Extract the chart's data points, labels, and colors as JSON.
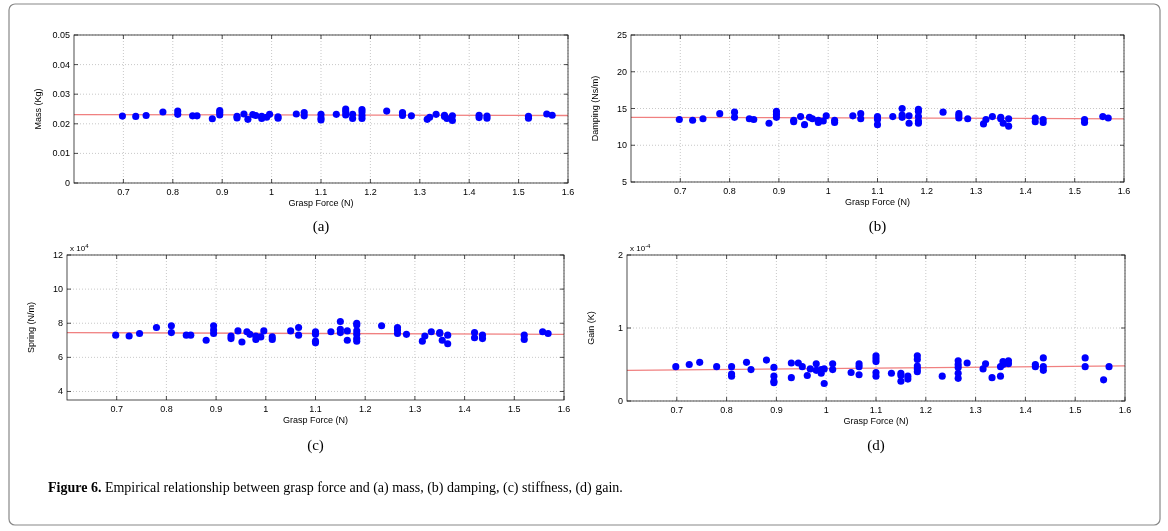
{
  "chart_data": [
    {
      "type": "scatter",
      "title": "(a)",
      "xlabel": "Grasp Force (N)",
      "ylabel": "Mass (Kg)",
      "xlim": [
        0.6,
        1.6
      ],
      "xticks": [
        0.7,
        0.8,
        0.9,
        1,
        1.1,
        1.2,
        1.3,
        1.4,
        1.5,
        1.6
      ],
      "ylim": [
        0,
        0.05
      ],
      "yticks": [
        0,
        0.01,
        0.02,
        0.03,
        0.04,
        0.05
      ],
      "grid": true,
      "series": [
        {
          "type": "scatter",
          "marker": "circle",
          "color": "#0000ff",
          "x": [
            0.698,
            0.725,
            0.746,
            0.78,
            0.81,
            0.81,
            0.84,
            0.849,
            0.88,
            0.895,
            0.895,
            0.895,
            0.93,
            0.93,
            0.944,
            0.952,
            0.962,
            0.968,
            0.98,
            0.98,
            0.99,
            0.996,
            1.013,
            1.013,
            1.05,
            1.066,
            1.066,
            1.1,
            1.1,
            1.1,
            1.131,
            1.15,
            1.15,
            1.15,
            1.164,
            1.164,
            1.183,
            1.183,
            1.183,
            1.183,
            1.233,
            1.265,
            1.265,
            1.265,
            1.283,
            1.315,
            1.32,
            1.333,
            1.35,
            1.35,
            1.355,
            1.366,
            1.366,
            1.42,
            1.42,
            1.436,
            1.436,
            1.52,
            1.52,
            1.557,
            1.568
          ],
          "values": [
            0.0226,
            0.0225,
            0.0228,
            0.024,
            0.0243,
            0.0232,
            0.0227,
            0.0227,
            0.0217,
            0.0245,
            0.0238,
            0.023,
            0.0225,
            0.022,
            0.0233,
            0.0215,
            0.0231,
            0.0228,
            0.0225,
            0.0218,
            0.0222,
            0.0232,
            0.0224,
            0.0219,
            0.0233,
            0.0238,
            0.0227,
            0.0232,
            0.022,
            0.0213,
            0.0232,
            0.025,
            0.0241,
            0.023,
            0.0232,
            0.0218,
            0.0248,
            0.024,
            0.0228,
            0.0218,
            0.0243,
            0.0238,
            0.0233,
            0.0228,
            0.0227,
            0.0215,
            0.0222,
            0.0232,
            0.0229,
            0.0225,
            0.0218,
            0.0227,
            0.0211,
            0.0229,
            0.0221,
            0.0226,
            0.0219,
            0.0225,
            0.0219,
            0.0233,
            0.0229
          ]
        },
        {
          "type": "line",
          "color": "#f08080",
          "x": [
            0.6,
            1.6
          ],
          "values": [
            0.0231,
            0.0228
          ]
        }
      ]
    },
    {
      "type": "scatter",
      "title": "(b)",
      "xlabel": "Grasp Force (N)",
      "ylabel": "Damping (Ns/m)",
      "xlim": [
        0.6,
        1.6
      ],
      "xticks": [
        0.7,
        0.8,
        0.9,
        1,
        1.1,
        1.2,
        1.3,
        1.4,
        1.5,
        1.6
      ],
      "ylim": [
        5,
        25
      ],
      "yticks": [
        5,
        10,
        15,
        20,
        25
      ],
      "grid": true,
      "series": [
        {
          "type": "scatter",
          "marker": "circle",
          "color": "#0000ff",
          "x": [
            0.698,
            0.725,
            0.746,
            0.78,
            0.81,
            0.81,
            0.84,
            0.849,
            0.88,
            0.895,
            0.895,
            0.895,
            0.93,
            0.93,
            0.944,
            0.952,
            0.962,
            0.968,
            0.98,
            0.98,
            0.99,
            0.996,
            1.013,
            1.013,
            1.05,
            1.066,
            1.066,
            1.1,
            1.1,
            1.1,
            1.131,
            1.15,
            1.15,
            1.15,
            1.164,
            1.164,
            1.183,
            1.183,
            1.183,
            1.183,
            1.183,
            1.233,
            1.265,
            1.265,
            1.265,
            1.283,
            1.315,
            1.32,
            1.333,
            1.35,
            1.35,
            1.355,
            1.366,
            1.366,
            1.42,
            1.42,
            1.436,
            1.436,
            1.52,
            1.52,
            1.557,
            1.568
          ],
          "values": [
            13.5,
            13.4,
            13.6,
            14.3,
            14.5,
            13.8,
            13.6,
            13.5,
            13.0,
            14.6,
            14.2,
            13.8,
            13.4,
            13.2,
            13.9,
            12.8,
            13.8,
            13.6,
            13.4,
            13.1,
            13.3,
            14.0,
            13.4,
            13.1,
            14.0,
            14.3,
            13.6,
            13.9,
            13.5,
            12.8,
            13.9,
            15.0,
            14.1,
            13.8,
            14.0,
            13.0,
            14.9,
            14.6,
            13.9,
            13.3,
            13.0,
            14.5,
            14.3,
            14.0,
            13.7,
            13.6,
            12.9,
            13.5,
            13.9,
            13.8,
            13.6,
            13.0,
            13.6,
            12.6,
            13.7,
            13.2,
            13.5,
            13.1,
            13.5,
            13.1,
            13.9,
            13.7
          ]
        },
        {
          "type": "line",
          "color": "#f08080",
          "x": [
            0.6,
            1.6
          ],
          "values": [
            13.8,
            13.6
          ]
        }
      ]
    },
    {
      "type": "scatter",
      "title": "(c)",
      "xlabel": "Grasp Force (N)",
      "ylabel": "Spring (N/m)",
      "annotations": [
        "x 10$^{4}$"
      ],
      "xlim": [
        0.6,
        1.6
      ],
      "xticks": [
        0.7,
        0.8,
        0.9,
        1,
        1.1,
        1.2,
        1.3,
        1.4,
        1.5,
        1.6
      ],
      "ylim": [
        3.5,
        12
      ],
      "yticks": [
        4,
        6,
        8,
        10,
        12
      ],
      "grid": true,
      "series": [
        {
          "type": "scatter",
          "marker": "circle",
          "color": "#0000ff",
          "x": [
            0.698,
            0.725,
            0.746,
            0.78,
            0.81,
            0.81,
            0.84,
            0.849,
            0.88,
            0.895,
            0.895,
            0.895,
            0.93,
            0.93,
            0.944,
            0.952,
            0.962,
            0.968,
            0.98,
            0.98,
            0.99,
            0.996,
            1.013,
            1.013,
            1.05,
            1.066,
            1.066,
            1.1,
            1.1,
            1.1,
            1.1,
            1.131,
            1.15,
            1.15,
            1.15,
            1.164,
            1.164,
            1.183,
            1.183,
            1.183,
            1.183,
            1.183,
            1.183,
            1.233,
            1.265,
            1.265,
            1.265,
            1.283,
            1.315,
            1.32,
            1.333,
            1.35,
            1.35,
            1.355,
            1.366,
            1.366,
            1.42,
            1.42,
            1.436,
            1.436,
            1.52,
            1.52,
            1.557,
            1.568
          ],
          "values": [
            7.3,
            7.25,
            7.4,
            7.75,
            7.85,
            7.45,
            7.3,
            7.3,
            7.0,
            7.85,
            7.6,
            7.4,
            7.25,
            7.1,
            7.55,
            6.9,
            7.5,
            7.35,
            7.25,
            7.05,
            7.2,
            7.55,
            7.2,
            7.05,
            7.55,
            7.75,
            7.3,
            7.5,
            7.35,
            6.95,
            6.85,
            7.5,
            8.1,
            7.65,
            7.45,
            7.55,
            7.0,
            8.0,
            7.9,
            7.55,
            7.35,
            7.1,
            6.95,
            7.85,
            7.75,
            7.6,
            7.4,
            7.35,
            6.95,
            7.25,
            7.5,
            7.4,
            7.45,
            7.0,
            7.3,
            6.8,
            7.45,
            7.15,
            7.3,
            7.1,
            7.3,
            7.05,
            7.5,
            7.4
          ]
        },
        {
          "type": "line",
          "color": "#f08080",
          "x": [
            0.6,
            1.6
          ],
          "values": [
            7.45,
            7.35
          ]
        }
      ]
    },
    {
      "type": "scatter",
      "title": "(d)",
      "xlabel": "Grasp Force (N)",
      "ylabel": "Gain (K)",
      "annotations": [
        "x 10$^{-4}$"
      ],
      "xlim": [
        0.6,
        1.6
      ],
      "xticks": [
        0.7,
        0.8,
        0.9,
        1,
        1.1,
        1.2,
        1.3,
        1.4,
        1.5,
        1.6
      ],
      "ylim": [
        0,
        2
      ],
      "yticks": [
        0,
        1,
        2
      ],
      "grid": true,
      "series": [
        {
          "type": "scatter",
          "marker": "circle",
          "color": "#0000ff",
          "x": [
            0.698,
            0.725,
            0.746,
            0.78,
            0.81,
            0.81,
            0.81,
            0.84,
            0.849,
            0.88,
            0.895,
            0.895,
            0.895,
            0.895,
            0.93,
            0.93,
            0.944,
            0.952,
            0.962,
            0.968,
            0.98,
            0.98,
            0.99,
            0.99,
            0.996,
            0.996,
            1.013,
            1.013,
            1.05,
            1.066,
            1.066,
            1.066,
            1.1,
            1.1,
            1.1,
            1.1,
            1.1,
            1.131,
            1.15,
            1.15,
            1.15,
            1.164,
            1.164,
            1.183,
            1.183,
            1.183,
            1.183,
            1.183,
            1.233,
            1.265,
            1.265,
            1.265,
            1.265,
            1.265,
            1.283,
            1.315,
            1.32,
            1.333,
            1.35,
            1.35,
            1.355,
            1.355,
            1.366,
            1.366,
            1.42,
            1.42,
            1.436,
            1.436,
            1.436,
            1.52,
            1.52,
            1.557,
            1.568
          ],
          "values": [
            0.47,
            0.5,
            0.53,
            0.47,
            0.47,
            0.37,
            0.34,
            0.53,
            0.43,
            0.56,
            0.46,
            0.34,
            0.27,
            0.25,
            0.52,
            0.32,
            0.52,
            0.47,
            0.35,
            0.44,
            0.51,
            0.42,
            0.38,
            0.43,
            0.24,
            0.44,
            0.51,
            0.43,
            0.39,
            0.51,
            0.47,
            0.36,
            0.62,
            0.58,
            0.54,
            0.39,
            0.34,
            0.38,
            0.38,
            0.35,
            0.27,
            0.34,
            0.3,
            0.62,
            0.57,
            0.48,
            0.44,
            0.4,
            0.34,
            0.55,
            0.5,
            0.46,
            0.38,
            0.31,
            0.52,
            0.44,
            0.51,
            0.32,
            0.34,
            0.47,
            0.54,
            0.5,
            0.55,
            0.51,
            0.5,
            0.47,
            0.59,
            0.47,
            0.42,
            0.59,
            0.47,
            0.29,
            0.47
          ]
        },
        {
          "type": "line",
          "color": "#f08080",
          "x": [
            0.6,
            1.6
          ],
          "values": [
            0.42,
            0.48
          ]
        }
      ]
    },
    {
      "type": "other",
      "title": "Figure 6.",
      "annotations": [
        "Empirical relationship between grasp force and (a) mass, (b) damping, (c) stiffness, (d) gain."
      ]
    }
  ]
}
